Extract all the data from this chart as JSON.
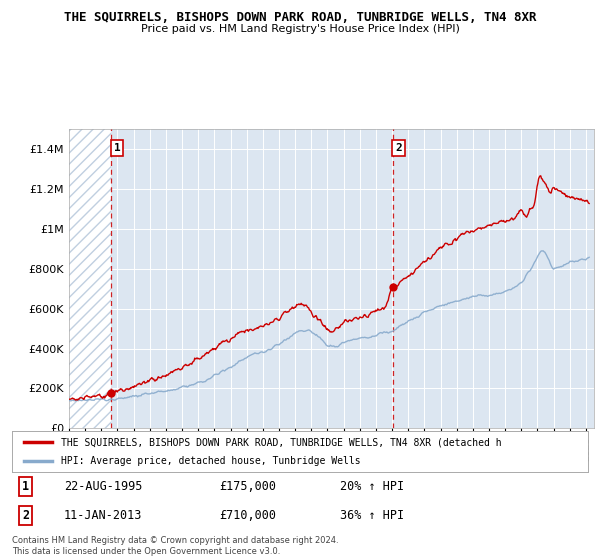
{
  "title": "THE SQUIRRELS, BISHOPS DOWN PARK ROAD, TUNBRIDGE WELLS, TN4 8XR",
  "subtitle": "Price paid vs. HM Land Registry's House Price Index (HPI)",
  "ylim": [
    0,
    1500000
  ],
  "yticks": [
    0,
    200000,
    400000,
    600000,
    800000,
    1000000,
    1200000,
    1400000
  ],
  "ytick_labels": [
    "£0",
    "£200K",
    "£400K",
    "£600K",
    "£800K",
    "£1M",
    "£1.2M",
    "£1.4M"
  ],
  "xlim_start": 1993.0,
  "xlim_end": 2025.5,
  "xticks": [
    1993,
    1994,
    1995,
    1996,
    1997,
    1998,
    1999,
    2000,
    2001,
    2002,
    2003,
    2004,
    2005,
    2006,
    2007,
    2008,
    2009,
    2010,
    2011,
    2012,
    2013,
    2014,
    2015,
    2016,
    2017,
    2018,
    2019,
    2020,
    2021,
    2022,
    2023,
    2024,
    2025
  ],
  "sale1_year": 1995.63,
  "sale1_price": 175000,
  "sale1_label": "1",
  "sale2_year": 2013.04,
  "sale2_price": 710000,
  "sale2_label": "2",
  "legend_line1": "THE SQUIRRELS, BISHOPS DOWN PARK ROAD, TUNBRIDGE WELLS, TN4 8XR (detached h",
  "legend_line2": "HPI: Average price, detached house, Tunbridge Wells",
  "annot1_num": "1",
  "annot1_date": "22-AUG-1995",
  "annot1_price": "£175,000",
  "annot1_hpi": "20% ↑ HPI",
  "annot2_num": "2",
  "annot2_date": "11-JAN-2013",
  "annot2_price": "£710,000",
  "annot2_hpi": "36% ↑ HPI",
  "footer": "Contains HM Land Registry data © Crown copyright and database right 2024.\nThis data is licensed under the Open Government Licence v3.0.",
  "price_line_color": "#cc0000",
  "hpi_line_color": "#88aacc",
  "bg_color": "#dce6f1",
  "hatch_color": "#c0cfe0",
  "grid_color": "#ffffff"
}
